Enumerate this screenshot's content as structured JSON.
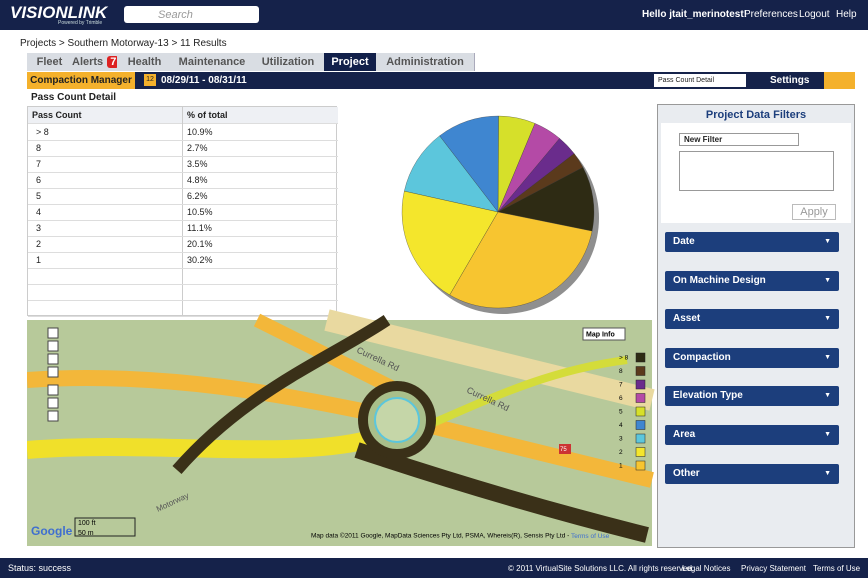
{
  "header": {
    "logo": "VISIONLINK",
    "logo_sub": "Powered by Trimble",
    "search_placeholder": "Search",
    "greeting": "Hello jtait_merinotest!",
    "links": [
      "Preferences",
      "Logout",
      "Help"
    ]
  },
  "breadcrumb": "Projects > Southern Motorway-13 > 11 Results",
  "tabs": [
    {
      "label": "Fleet"
    },
    {
      "label": "Alerts",
      "badge": "7"
    },
    {
      "label": "Health"
    },
    {
      "label": "Maintenance"
    },
    {
      "label": "Utilization"
    },
    {
      "label": "Project"
    },
    {
      "label": "Administration"
    }
  ],
  "toolbar": {
    "module": "Compaction Manager",
    "calendar_day": "12",
    "date_range": "08/29/11 - 08/31/11",
    "view": "Pass Count Detail",
    "settings": "Settings"
  },
  "section_title": "Pass Count Detail",
  "table": {
    "columns": [
      "Pass Count",
      "% of total"
    ],
    "rows": [
      [
        "> 8",
        "10.9%"
      ],
      [
        "8",
        "2.7%"
      ],
      [
        "7",
        "3.5%"
      ],
      [
        "6",
        "4.8%"
      ],
      [
        "5",
        "6.2%"
      ],
      [
        "4",
        "10.5%"
      ],
      [
        "3",
        "11.1%"
      ],
      [
        "2",
        "20.1%"
      ],
      [
        "1",
        "30.2%"
      ]
    ]
  },
  "chart_data": {
    "type": "pie",
    "categories": [
      "> 8",
      "8",
      "7",
      "6",
      "5",
      "4",
      "3",
      "2",
      "1"
    ],
    "values": [
      10.9,
      2.7,
      3.5,
      4.8,
      6.2,
      10.5,
      11.1,
      20.1,
      30.2
    ],
    "colors": [
      "#2e2b14",
      "#5b3a1c",
      "#6a2c8c",
      "#b44aa6",
      "#d6e02a",
      "#3f86d0",
      "#5cc6dc",
      "#f4e62c",
      "#f7c530"
    ]
  },
  "map": {
    "info": "Map Info",
    "road": "Currella Rd",
    "road2": "Currella Rd",
    "motorway": "Motorway",
    "shield": "75",
    "scale_ft": "100 ft",
    "scale_m": "50 m",
    "google": "Google",
    "attribution": "Map data ©2011  Google, MapData Sciences Pty Ltd, PSMA, Whereis(R), Sensis Pty Ltd - ",
    "terms": "Terms of Use"
  },
  "filters": {
    "title": "Project Data Filters",
    "filter_name": "New Filter",
    "apply": "Apply",
    "sections": [
      "Date",
      "On Machine Design",
      "Asset",
      "Compaction",
      "Elevation Type",
      "Area",
      "Other"
    ]
  },
  "status": {
    "text": "Status: success",
    "copyright": "© 2011 VirtualSite Solutions LLC. All rights reserved.",
    "links": [
      "Legal Notices",
      "Privacy Statement",
      "Terms of Use"
    ]
  }
}
